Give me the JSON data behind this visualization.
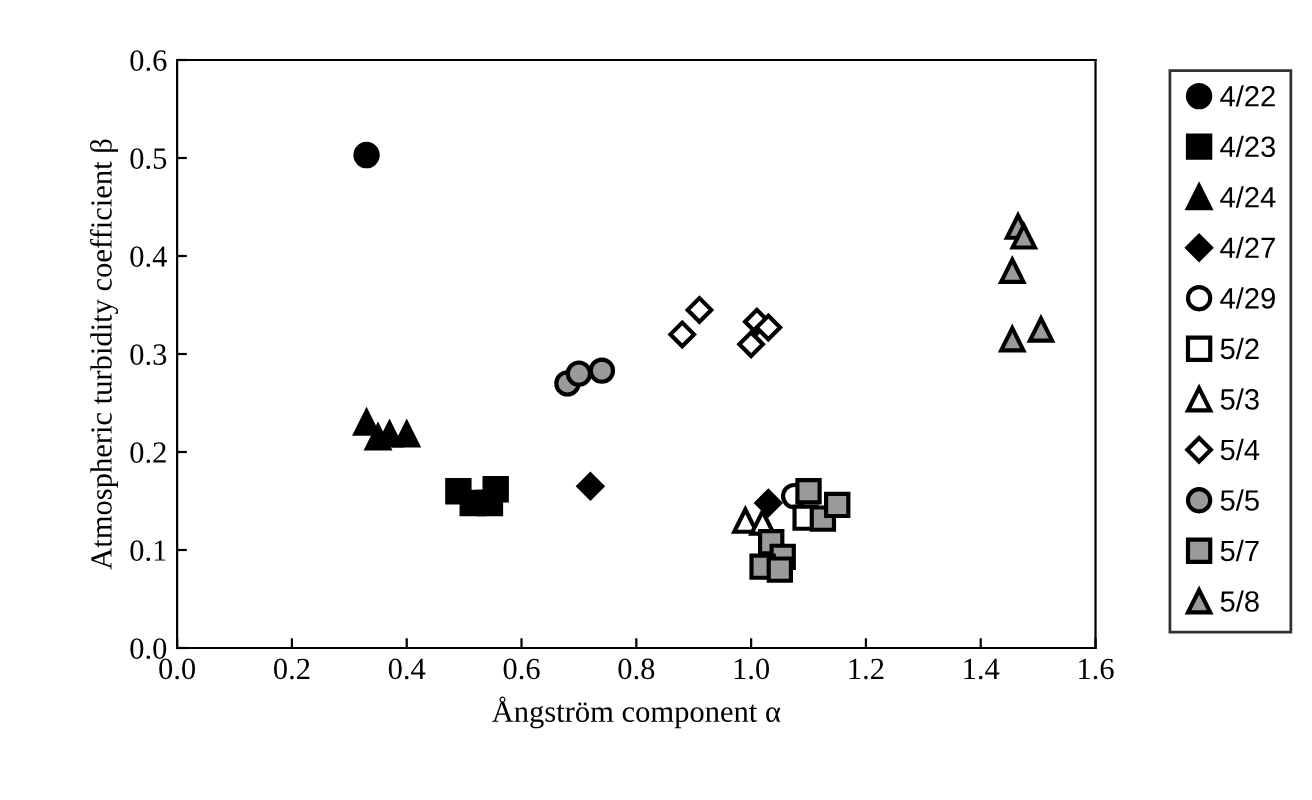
{
  "chart_data": {
    "type": "scatter",
    "xlabel": "Ångström component α",
    "ylabel": "Atmospheric turbidity coefficient β",
    "xlim": [
      0,
      1.6
    ],
    "ylim": [
      0,
      0.6
    ],
    "xticks": [
      {
        "value": 0,
        "label": "0.0"
      },
      0.2,
      0.4,
      0.6,
      0.8,
      {
        "value": 1,
        "label": "1.0"
      },
      1.2,
      1.4,
      1.6
    ],
    "yticks": [
      {
        "value": 0,
        "label": "0.0"
      },
      0.1,
      0.2,
      0.3,
      0.4,
      0.5,
      0.6
    ],
    "grid": false,
    "legend": "right",
    "series": [
      {
        "name": "4/22",
        "color": "#000000",
        "marker": "circle",
        "x": [
          0.33
        ],
        "values": [
          0.503
        ]
      },
      {
        "name": "4/23",
        "color": "#000000",
        "marker": "square",
        "x": [
          0.49,
          0.515,
          0.545,
          0.555
        ],
        "values": [
          0.16,
          0.148,
          0.148,
          0.162
        ]
      },
      {
        "name": "4/24",
        "color": "#000000",
        "marker": "triangle",
        "x": [
          0.33,
          0.35,
          0.37,
          0.4
        ],
        "values": [
          0.23,
          0.215,
          0.218,
          0.218
        ]
      },
      {
        "name": "4/27",
        "color": "#000000",
        "marker": "diamond",
        "x": [
          0.72,
          1.03
        ],
        "values": [
          0.165,
          0.148
        ]
      },
      {
        "name": "4/29",
        "color": "#ffffff",
        "marker": "circle",
        "x": [
          1.075
        ],
        "values": [
          0.155
        ]
      },
      {
        "name": "5/2",
        "color": "#ffffff",
        "marker": "square",
        "x": [
          1.095
        ],
        "values": [
          0.133
        ]
      },
      {
        "name": "5/3",
        "color": "#ffffff",
        "marker": "triangle",
        "x": [
          0.99,
          1.02
        ],
        "values": [
          0.13,
          0.128
        ]
      },
      {
        "name": "5/4",
        "color": "#ffffff",
        "marker": "diamond",
        "x": [
          0.88,
          0.91,
          1.0,
          1.01,
          1.03
        ],
        "values": [
          0.32,
          0.345,
          0.31,
          0.333,
          0.327
        ]
      },
      {
        "name": "5/5",
        "color": "#9a9a9a",
        "marker": "circle",
        "x": [
          0.68,
          0.7,
          0.74
        ],
        "values": [
          0.27,
          0.28,
          0.283
        ]
      },
      {
        "name": "5/7",
        "color": "#9a9a9a",
        "marker": "square",
        "x": [
          1.1,
          1.125,
          1.15,
          1.035,
          1.055,
          1.02,
          1.05
        ],
        "values": [
          0.16,
          0.132,
          0.146,
          0.108,
          0.093,
          0.083,
          0.08
        ]
      },
      {
        "name": "5/8",
        "color": "#9a9a9a",
        "marker": "triangle",
        "x": [
          1.465,
          1.475,
          1.455,
          1.455,
          1.505
        ],
        "values": [
          0.43,
          0.42,
          0.385,
          0.315,
          0.325
        ]
      }
    ]
  }
}
